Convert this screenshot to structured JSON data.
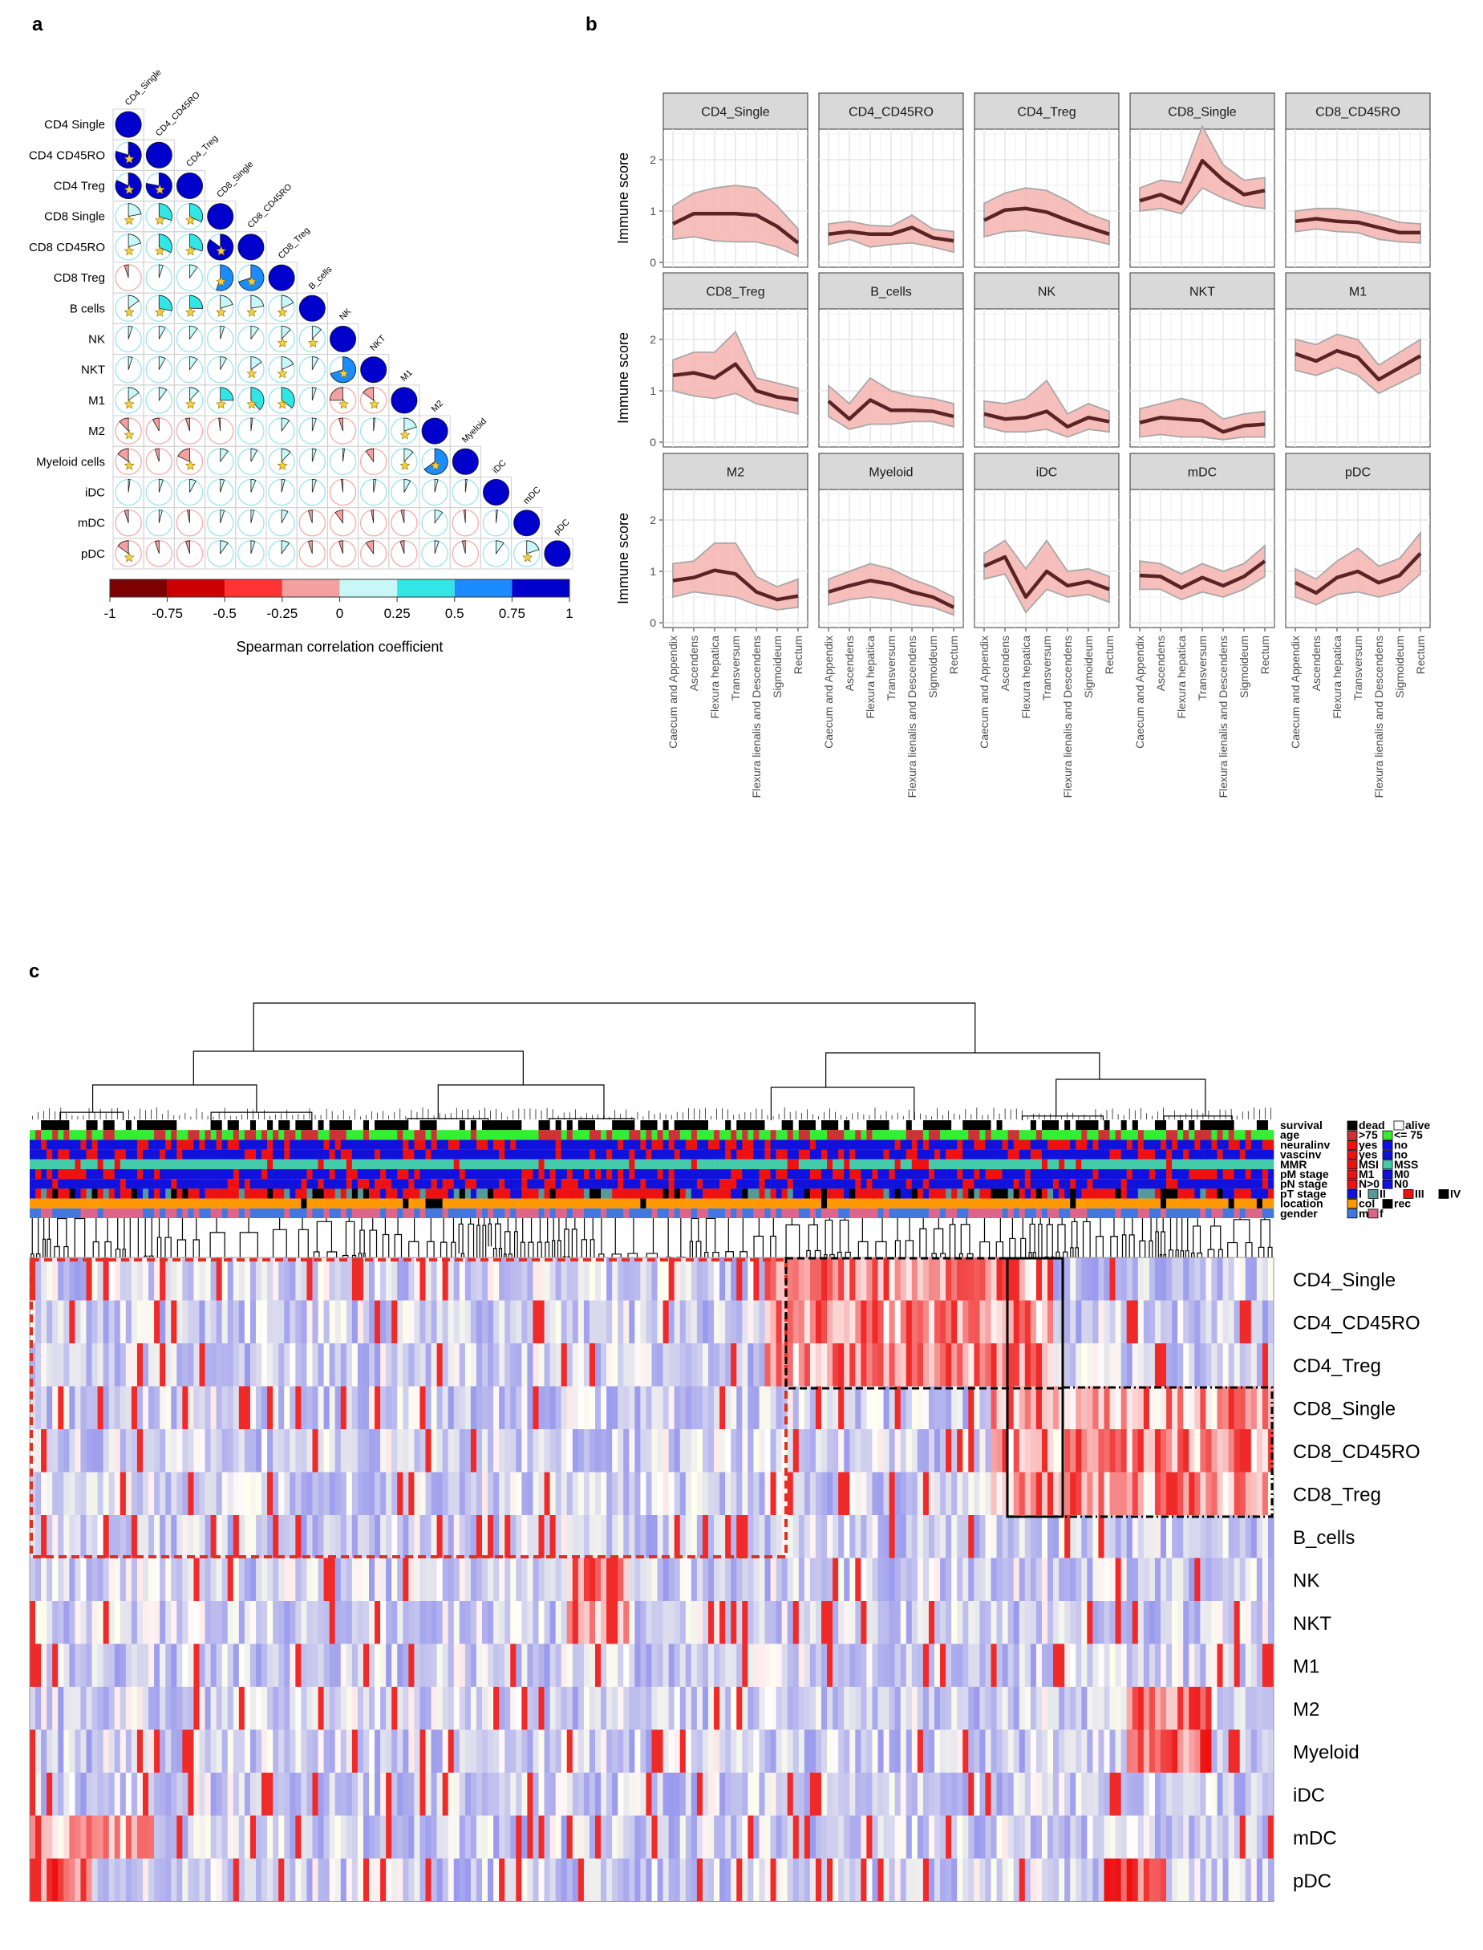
{
  "panel_labels": {
    "a": "a",
    "b": "b",
    "c": "c"
  },
  "chart_data": [
    {
      "type": "heatmap",
      "panel": "a",
      "subtype": "correlation pie matrix (lower triangle)",
      "row_labels": [
        "CD4 Single",
        "CD4 CD45RO",
        "CD4 Treg",
        "CD8 Single",
        "CD8 CD45RO",
        "CD8 Treg",
        "B cells",
        "NK",
        "NKT",
        "M1",
        "M2",
        "Myeloid cells",
        "iDC",
        "mDC",
        "pDC"
      ],
      "col_labels": [
        "CD4_Single",
        "CD4_CD45RO",
        "CD4_Treg",
        "CD8_Single",
        "CD8_CD45RO",
        "CD8_Treg",
        "B_cells",
        "NK",
        "NKT",
        "M1",
        "M2",
        "Myeloid",
        "iDC",
        "mDC",
        "pDC"
      ],
      "matrix": [
        [
          1
        ],
        [
          0.8,
          1
        ],
        [
          0.82,
          0.78,
          1
        ],
        [
          0.22,
          0.3,
          0.32,
          1
        ],
        [
          0.2,
          0.32,
          0.3,
          0.85,
          1
        ],
        [
          -0.05,
          0.05,
          0.1,
          0.55,
          0.7,
          1
        ],
        [
          0.15,
          0.28,
          0.25,
          0.2,
          0.22,
          0.18,
          1
        ],
        [
          0.05,
          0.08,
          0.1,
          0.05,
          0.1,
          0.12,
          0.12,
          1
        ],
        [
          0.05,
          0.08,
          0.1,
          0.08,
          0.15,
          0.18,
          0.08,
          0.7,
          1
        ],
        [
          0.15,
          0.1,
          0.12,
          0.25,
          0.38,
          0.35,
          0.05,
          -0.25,
          -0.15,
          1
        ],
        [
          -0.12,
          -0.08,
          -0.05,
          -0.02,
          0.02,
          0.1,
          0.05,
          -0.05,
          0.02,
          0.2,
          1
        ],
        [
          -0.15,
          -0.05,
          -0.18,
          0.1,
          0.08,
          0.12,
          0.05,
          0.02,
          -0.1,
          0.12,
          0.65,
          1
        ],
        [
          0.02,
          0.05,
          0.08,
          0.05,
          0.06,
          0.04,
          0.05,
          -0.02,
          0.03,
          0.08,
          0.04,
          0.02,
          1
        ],
        [
          -0.05,
          0.04,
          -0.03,
          0.05,
          0.04,
          0.08,
          -0.05,
          -0.1,
          -0.03,
          -0.04,
          0.1,
          -0.02,
          0.02,
          1
        ],
        [
          -0.15,
          -0.05,
          -0.05,
          0.1,
          0.05,
          0.1,
          -0.05,
          -0.05,
          -0.1,
          -0.05,
          0.05,
          -0.04,
          0.1,
          0.2,
          1
        ]
      ],
      "scale_ticks": [
        "-1",
        "-0.75",
        "-0.5",
        "-0.25",
        "0",
        "0.25",
        "0.5",
        "0.75",
        "1"
      ],
      "scale_colors": [
        "#7f0000",
        "#cc0000",
        "#ff3333",
        "#f4a0a0",
        "#c7f7f7",
        "#33e6e6",
        "#1a8cff",
        "#0000cc"
      ],
      "xlabel": "Spearman correlation coefficient"
    },
    {
      "type": "line",
      "panel": "b",
      "subtype": "faceted line with ribbon",
      "ylabel": "Immune score",
      "ylim": [
        0,
        2.5
      ],
      "y_ticks": [
        "0",
        "1",
        "2"
      ],
      "categories": [
        "Caecum and Appendix",
        "Ascendens",
        "Flexura hepatica",
        "Transversum",
        "Flexura lienalis and Descendens",
        "Sigmoideum",
        "Rectum"
      ],
      "facets": [
        {
          "name": "CD4_Single",
          "values": [
            0.75,
            0.95,
            0.95,
            0.95,
            0.92,
            0.7,
            0.38
          ],
          "lower": [
            0.45,
            0.5,
            0.42,
            0.4,
            0.4,
            0.3,
            0.12
          ],
          "upper": [
            1.1,
            1.35,
            1.45,
            1.5,
            1.45,
            1.1,
            0.65
          ]
        },
        {
          "name": "CD4_CD45RO",
          "values": [
            0.55,
            0.6,
            0.55,
            0.55,
            0.68,
            0.48,
            0.42
          ],
          "lower": [
            0.35,
            0.45,
            0.3,
            0.35,
            0.38,
            0.3,
            0.2
          ],
          "upper": [
            0.75,
            0.8,
            0.72,
            0.7,
            0.92,
            0.65,
            0.6
          ]
        },
        {
          "name": "CD4_Treg",
          "values": [
            0.82,
            1.02,
            1.05,
            0.98,
            0.82,
            0.68,
            0.55
          ],
          "lower": [
            0.5,
            0.6,
            0.62,
            0.55,
            0.5,
            0.45,
            0.35
          ],
          "upper": [
            1.15,
            1.35,
            1.45,
            1.4,
            1.2,
            0.95,
            0.8
          ]
        },
        {
          "name": "CD8_Single",
          "values": [
            1.2,
            1.32,
            1.15,
            1.98,
            1.6,
            1.32,
            1.4
          ],
          "lower": [
            1.0,
            1.05,
            0.95,
            1.45,
            1.25,
            1.1,
            1.05
          ],
          "upper": [
            1.45,
            1.6,
            1.55,
            2.65,
            1.9,
            1.6,
            1.65
          ]
        },
        {
          "name": "CD8_CD45RO",
          "values": [
            0.8,
            0.85,
            0.8,
            0.78,
            0.68,
            0.58,
            0.58
          ],
          "lower": [
            0.6,
            0.65,
            0.6,
            0.58,
            0.45,
            0.4,
            0.38
          ],
          "upper": [
            1.0,
            1.05,
            1.05,
            1.0,
            0.9,
            0.78,
            0.75
          ]
        },
        {
          "name": "CD8_Treg",
          "values": [
            1.3,
            1.35,
            1.25,
            1.52,
            1.0,
            0.88,
            0.82
          ],
          "lower": [
            1.0,
            0.9,
            0.85,
            0.95,
            0.75,
            0.65,
            0.55
          ],
          "upper": [
            1.6,
            1.75,
            1.75,
            2.15,
            1.25,
            1.15,
            1.05
          ]
        },
        {
          "name": "B_cells",
          "values": [
            0.8,
            0.45,
            0.82,
            0.62,
            0.62,
            0.6,
            0.5
          ],
          "lower": [
            0.5,
            0.25,
            0.35,
            0.35,
            0.4,
            0.4,
            0.3
          ],
          "upper": [
            1.1,
            0.75,
            1.25,
            1.0,
            0.9,
            0.85,
            0.75
          ]
        },
        {
          "name": "NK",
          "values": [
            0.55,
            0.45,
            0.48,
            0.6,
            0.3,
            0.48,
            0.4
          ],
          "lower": [
            0.3,
            0.2,
            0.2,
            0.25,
            0.1,
            0.25,
            0.2
          ],
          "upper": [
            0.8,
            0.75,
            0.85,
            1.2,
            0.55,
            0.75,
            0.6
          ]
        },
        {
          "name": "NKT",
          "values": [
            0.38,
            0.48,
            0.45,
            0.42,
            0.2,
            0.32,
            0.35
          ],
          "lower": [
            0.1,
            0.15,
            0.1,
            0.1,
            0.05,
            0.1,
            0.1
          ],
          "upper": [
            0.65,
            0.75,
            0.85,
            0.75,
            0.45,
            0.55,
            0.6
          ]
        },
        {
          "name": "M1",
          "values": [
            1.72,
            1.58,
            1.78,
            1.65,
            1.22,
            1.45,
            1.68
          ],
          "lower": [
            1.4,
            1.3,
            1.45,
            1.3,
            0.95,
            1.15,
            1.35
          ],
          "upper": [
            2.0,
            1.9,
            2.1,
            2.0,
            1.5,
            1.75,
            2.0
          ]
        },
        {
          "name": "M2",
          "values": [
            0.82,
            0.88,
            1.02,
            0.95,
            0.6,
            0.45,
            0.52
          ],
          "lower": [
            0.5,
            0.6,
            0.55,
            0.5,
            0.35,
            0.25,
            0.3
          ],
          "upper": [
            1.15,
            1.2,
            1.55,
            1.55,
            0.9,
            0.7,
            0.85
          ]
        },
        {
          "name": "Myeloid",
          "values": [
            0.6,
            0.72,
            0.82,
            0.75,
            0.6,
            0.5,
            0.3
          ],
          "lower": [
            0.35,
            0.45,
            0.5,
            0.45,
            0.35,
            0.3,
            0.15
          ],
          "upper": [
            0.85,
            1.0,
            1.15,
            1.05,
            0.85,
            0.7,
            0.5
          ]
        },
        {
          "name": "iDC",
          "values": [
            1.1,
            1.28,
            0.5,
            1.0,
            0.72,
            0.8,
            0.65
          ],
          "lower": [
            0.85,
            0.95,
            0.2,
            0.65,
            0.5,
            0.55,
            0.4
          ],
          "upper": [
            1.35,
            1.6,
            1.05,
            1.6,
            1.0,
            1.05,
            0.9
          ]
        },
        {
          "name": "mDC",
          "values": [
            0.92,
            0.9,
            0.68,
            0.88,
            0.72,
            0.9,
            1.2
          ],
          "lower": [
            0.65,
            0.65,
            0.45,
            0.6,
            0.5,
            0.65,
            0.9
          ],
          "upper": [
            1.2,
            1.15,
            0.95,
            1.15,
            1.0,
            1.15,
            1.5
          ]
        },
        {
          "name": "pDC",
          "values": [
            0.78,
            0.58,
            0.88,
            1.0,
            0.78,
            0.92,
            1.35
          ],
          "lower": [
            0.5,
            0.35,
            0.55,
            0.6,
            0.5,
            0.6,
            0.95
          ],
          "upper": [
            1.05,
            0.85,
            1.2,
            1.45,
            1.1,
            1.25,
            1.75
          ]
        }
      ]
    },
    {
      "type": "heatmap",
      "panel": "c",
      "subtype": "clustered heatmap with annotation tracks",
      "rows": [
        "CD4_Single",
        "CD4_CD45RO",
        "CD4_Treg",
        "CD8_Single",
        "CD8_CD45RO",
        "CD8_Treg",
        "B_cells",
        "NK",
        "NKT",
        "M1",
        "M2",
        "Myeloid",
        "iDC",
        "mDC",
        "pDC"
      ],
      "annotation_tracks": [
        "survival",
        "age",
        "neuralinv",
        "vascinv",
        "MMR",
        "pM stage",
        "pN stage",
        "pT stage",
        "location",
        "gender"
      ],
      "legend": [
        {
          "track": "survival",
          "items": [
            {
              "label": "dead",
              "color": "#000000"
            },
            {
              "label": "alive",
              "color": "#ffffff"
            }
          ]
        },
        {
          "track": "age",
          "items": [
            {
              "label": ">75",
              "color": "#cc3333"
            },
            {
              "label": "<= 75",
              "color": "#33ee33"
            }
          ]
        },
        {
          "track": "neuralinv",
          "items": [
            {
              "label": "yes",
              "color": "#ee1111"
            },
            {
              "label": "no",
              "color": "#1111dd"
            }
          ]
        },
        {
          "track": "vascinv",
          "items": [
            {
              "label": "yes",
              "color": "#ee1111"
            },
            {
              "label": "no",
              "color": "#1111dd"
            }
          ]
        },
        {
          "track": "MMR",
          "items": [
            {
              "label": "MSI",
              "color": "#ee1111"
            },
            {
              "label": "MSS",
              "color": "#44ccaa"
            }
          ]
        },
        {
          "track": "pM stage",
          "items": [
            {
              "label": "M1",
              "color": "#ee1111"
            },
            {
              "label": "M0",
              "color": "#1111dd"
            }
          ]
        },
        {
          "track": "pN stage",
          "items": [
            {
              "label": "N>0",
              "color": "#ee1111"
            },
            {
              "label": "N0",
              "color": "#1111dd"
            }
          ]
        },
        {
          "track": "pT stage",
          "items": [
            {
              "label": "I",
              "color": "#1111dd"
            },
            {
              "label": "II",
              "color": "#559999"
            },
            {
              "label": "III",
              "color": "#ee1111"
            },
            {
              "label": "IV",
              "color": "#000000"
            }
          ]
        },
        {
          "track": "location",
          "items": [
            {
              "label": "col",
              "color": "#ff9900"
            },
            {
              "label": "rec",
              "color": "#000000"
            }
          ]
        },
        {
          "track": "gender",
          "items": [
            {
              "label": "m",
              "color": "#4477dd"
            },
            {
              "label": "f",
              "color": "#dd6688"
            }
          ]
        }
      ],
      "color_low": "#8080ee",
      "color_mid": "#ffffff",
      "color_high": "#ee1111"
    }
  ]
}
